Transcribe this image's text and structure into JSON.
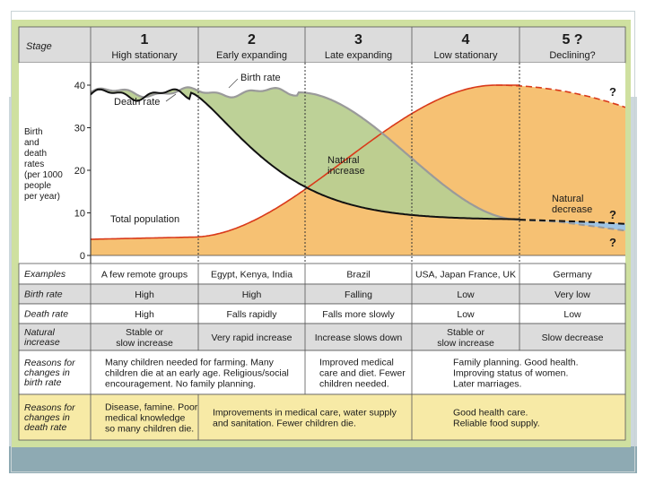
{
  "stage_label": "Stage",
  "stages": [
    {
      "number": "1",
      "name": "High stationary"
    },
    {
      "number": "2",
      "name": "Early expanding"
    },
    {
      "number": "3",
      "name": "Late expanding"
    },
    {
      "number": "4",
      "name": "Low stationary"
    },
    {
      "number": "5 ?",
      "name": "Declining?"
    }
  ],
  "y_axis": {
    "label_lines": [
      "Birth",
      "and",
      "death",
      "rates",
      "(per 1000",
      "people",
      "per year)"
    ],
    "ticks": [
      "0",
      "10",
      "20",
      "30",
      "40"
    ]
  },
  "curve_labels": {
    "birth_rate": "Birth rate",
    "death_rate": "Death rate",
    "total_population": "Total population",
    "natural_increase": [
      "Natural",
      "increase"
    ],
    "natural_decrease": [
      "Natural",
      "decrease"
    ],
    "question_marks": [
      "?",
      "?",
      "?"
    ]
  },
  "rows": [
    {
      "label": [
        "Examples"
      ],
      "cells": [
        [
          "A few remote groups"
        ],
        [
          "Egypt, Kenya, India"
        ],
        [
          "Brazil"
        ],
        [
          "USA, Japan France, UK"
        ],
        [
          "Germany"
        ]
      ]
    },
    {
      "label": [
        "Birth rate"
      ],
      "cells": [
        [
          "High"
        ],
        [
          "High"
        ],
        [
          "Falling"
        ],
        [
          "Low"
        ],
        [
          "Very low"
        ]
      ]
    },
    {
      "label": [
        "Death rate"
      ],
      "cells": [
        [
          "High"
        ],
        [
          "Falls rapidly"
        ],
        [
          "Falls more slowly"
        ],
        [
          "Low"
        ],
        [
          "Low"
        ]
      ]
    },
    {
      "label": [
        "Natural",
        "increase"
      ],
      "cells": [
        [
          "Stable or",
          "slow increase"
        ],
        [
          "Very rapid increase"
        ],
        [
          "Increase slows down"
        ],
        [
          "Stable or",
          "slow increase"
        ],
        [
          "Slow decrease"
        ]
      ]
    },
    {
      "label": [
        "Reasons for",
        "changes in",
        "birth rate"
      ],
      "merged": [
        {
          "lines": [
            "Many children needed for farming. Many",
            "children die at an early age. Religious/social",
            "encouragement. No family planning."
          ]
        },
        {
          "lines": [
            "Improved medical",
            "care and diet. Fewer",
            "children needed."
          ]
        },
        {
          "lines": [
            "Family planning. Good health.",
            "Improving status of women.",
            "Later marriages."
          ]
        }
      ]
    },
    {
      "label": [
        "Reasons for",
        "changes in",
        "death rate"
      ],
      "merged": [
        {
          "lines": [
            "Disease, famine. Poor",
            "medical knowledge",
            "so many children die."
          ]
        },
        {
          "lines": [
            "Improvements in medical care, water supply",
            "and sanitation. Fewer children die."
          ]
        },
        {
          "lines": [
            "Good health care.",
            "Reliable food supply."
          ]
        }
      ]
    }
  ],
  "colors": {
    "birth_rate_line": "#9a9a9a",
    "death_rate_line": "#111111",
    "population_line": "#d93a1a",
    "natural_increase_fill": "#b9cf91",
    "population_fill": "#f6c173",
    "natural_decrease_fill": "#9fc4e4"
  }
}
